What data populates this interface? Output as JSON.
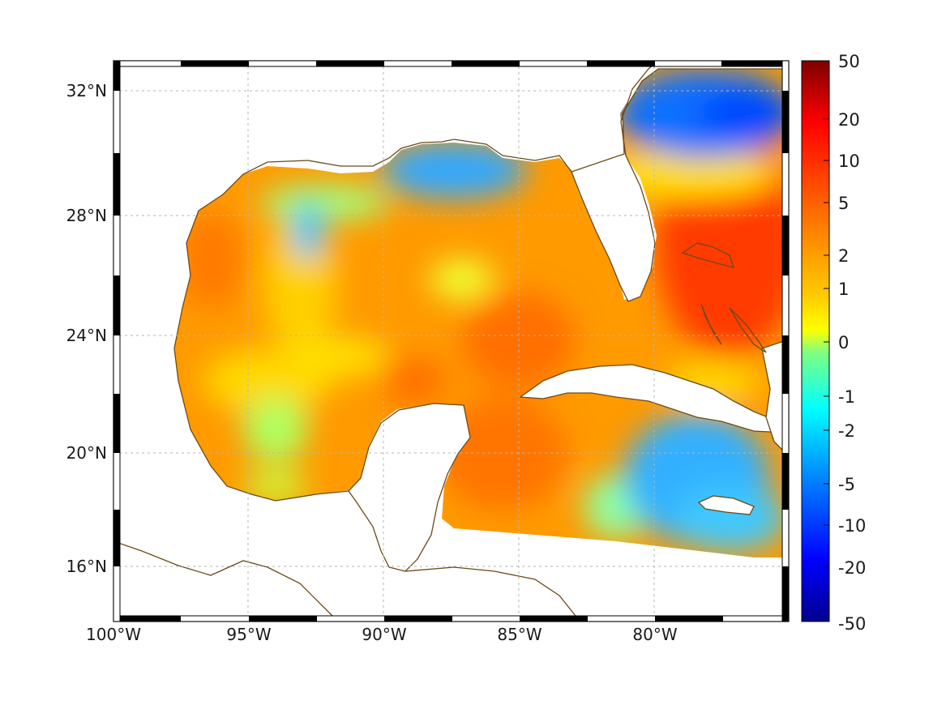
{
  "map": {
    "lon_labels": [
      "100°W",
      "95°W",
      "90°W",
      "85°W",
      "80°W"
    ],
    "lat_labels": [
      "32°N",
      "28°N",
      "24°N",
      "20°N",
      "16°N"
    ],
    "lon_range": [
      -100,
      -75
    ],
    "lat_range": [
      14.3,
      33
    ]
  },
  "colorbar": {
    "tick_labels": [
      "50",
      "20",
      "10",
      "5",
      "2",
      "1",
      "0",
      "-1",
      "-2",
      "-5",
      "-10",
      "-20",
      "-50"
    ],
    "colormap": "jet",
    "colors": [
      "#7f0000",
      "#ff0000",
      "#ff8000",
      "#ffff00",
      "#80ff80",
      "#00ffff",
      "#0080ff",
      "#0000ff",
      "#00008f"
    ]
  },
  "colors": {
    "coastline": "#6b4a1a",
    "grid": "#b5b5b5",
    "frame_dark": "#000000"
  }
}
